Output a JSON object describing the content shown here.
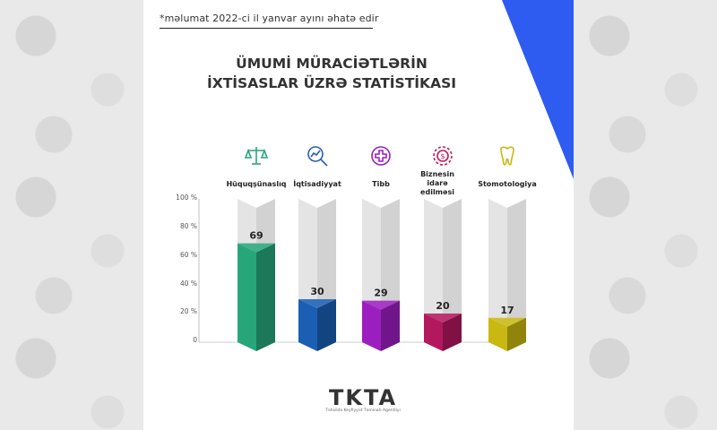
{
  "note": "*məlumat 2022-ci il yanvar ayını əhatə edir",
  "chart_data": {
    "type": "bar",
    "title_lines": [
      "ÜMUMİ MÜRACİƏTLƏRİN",
      "İXTİSASLAR ÜZRƏ STATİSTİKASI"
    ],
    "categories": [
      "Hüquqşünaslıq",
      "İqtisadiyyat",
      "Tibb",
      "Biznesin idarə edilməsi",
      "Stomotologiya"
    ],
    "values": [
      69,
      30,
      29,
      20,
      17
    ],
    "value_labels": [
      "69",
      "30",
      "29",
      "20",
      "17"
    ],
    "yticks": [
      "100 %",
      "80 %",
      "60 %",
      "40 %",
      "20 %",
      "0"
    ],
    "ylim": [
      0,
      100
    ],
    "colors": [
      "#27a67a",
      "#1a5fb4",
      "#9b1fbf",
      "#b3185e",
      "#c8b811"
    ],
    "icons": [
      "scales-icon",
      "analytics-icon",
      "medical-cross-icon",
      "business-gear-icon",
      "tooth-icon"
    ]
  },
  "logo": {
    "text": "TKTA",
    "subtitle": "Təhsildə Keyfiyyət Təminatı Agentliyi"
  }
}
